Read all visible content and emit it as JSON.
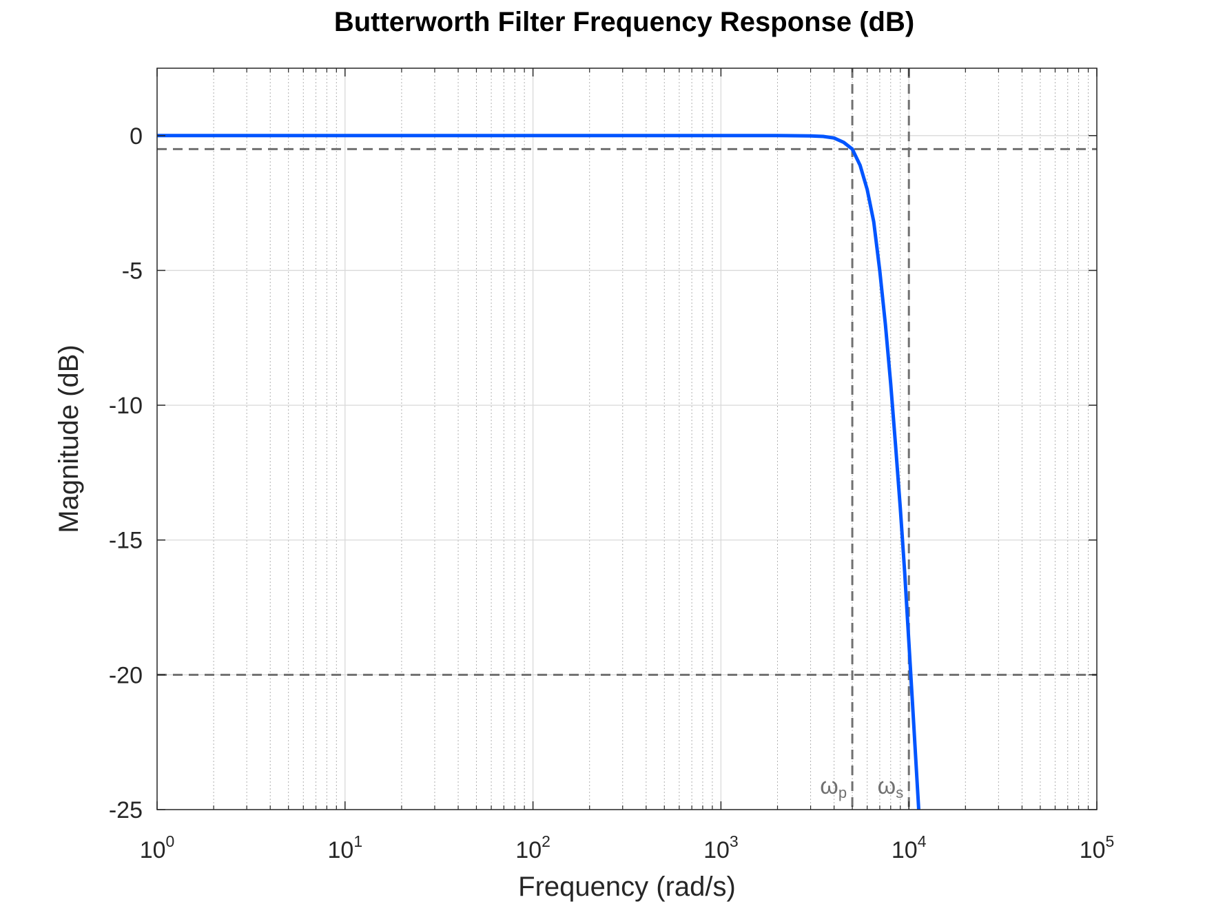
{
  "chart_data": {
    "type": "line",
    "title": "Butterworth Filter Frequency Response (dB)",
    "xlabel": "Frequency (rad/s)",
    "ylabel": "Magnitude (dB)",
    "x_scale": "log",
    "xlim": [
      1,
      100000
    ],
    "ylim": [
      -25,
      2.5
    ],
    "x_ticks": [
      {
        "base": "10",
        "exp": "0",
        "value": 1
      },
      {
        "base": "10",
        "exp": "1",
        "value": 10
      },
      {
        "base": "10",
        "exp": "2",
        "value": 100
      },
      {
        "base": "10",
        "exp": "3",
        "value": 1000
      },
      {
        "base": "10",
        "exp": "4",
        "value": 10000
      },
      {
        "base": "10",
        "exp": "5",
        "value": 100000
      }
    ],
    "y_ticks": [
      {
        "label": "0",
        "value": 0
      },
      {
        "label": "-5",
        "value": -5
      },
      {
        "label": "-10",
        "value": -10
      },
      {
        "label": "-15",
        "value": -15
      },
      {
        "label": "-20",
        "value": -20
      },
      {
        "label": "-25",
        "value": -25
      }
    ],
    "grid": true,
    "minor_grid": true,
    "series": [
      {
        "color": "#0055ff",
        "x": [
          1,
          10,
          100,
          1000,
          2000,
          3000,
          3500,
          4000,
          4500,
          5000,
          5500,
          6000,
          6500,
          7000,
          7500,
          8000,
          8500,
          9000,
          9500,
          10000,
          10500,
          11000,
          11500
        ],
        "y": [
          0,
          0,
          0,
          0,
          0,
          -0.01,
          -0.03,
          -0.09,
          -0.25,
          -0.5,
          -1.1,
          -2.0,
          -3.2,
          -5.0,
          -7.0,
          -9.2,
          -11.5,
          -13.8,
          -16.2,
          -18.8,
          -21.3,
          -23.7,
          -26.0
        ]
      }
    ],
    "reference_lines": {
      "horizontal": [
        -0.5,
        -20
      ],
      "vertical": [
        5000,
        10000
      ],
      "color": "#707070"
    },
    "markers": {
      "omega_p": {
        "symbol": "ω",
        "subscript": "p"
      },
      "omega_s": {
        "symbol": "ω",
        "subscript": "s"
      }
    }
  }
}
